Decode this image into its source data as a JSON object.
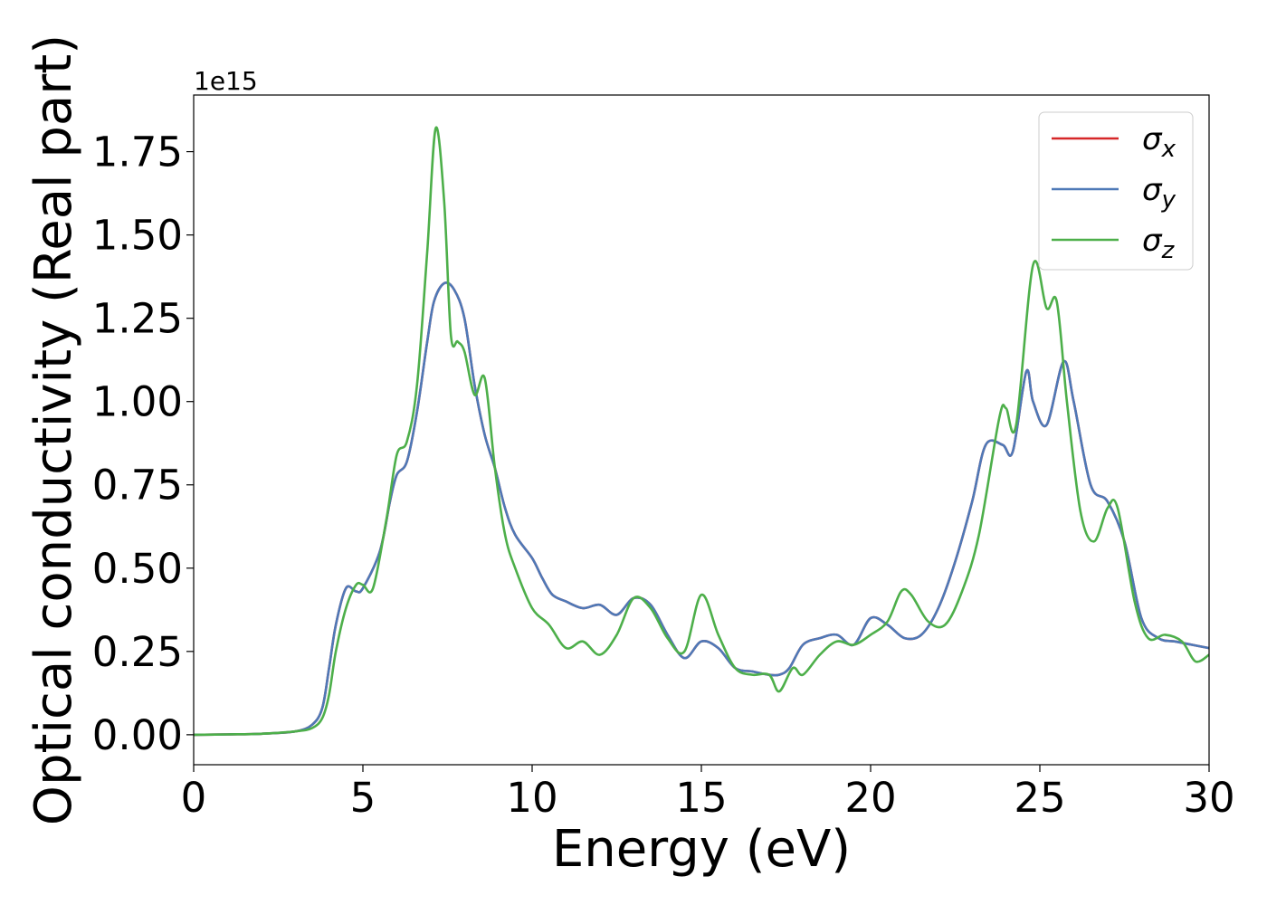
{
  "chart_data": {
    "type": "line",
    "xlabel": "Energy (eV)",
    "ylabel": "Optical conductivity (Real part)",
    "y_offset_text": "1e15",
    "xlim": [
      0,
      30
    ],
    "ylim": [
      -0.09,
      1.92
    ],
    "x_ticks": [
      0,
      5,
      10,
      15,
      20,
      25,
      30
    ],
    "x_tick_labels": [
      "0",
      "5",
      "10",
      "15",
      "20",
      "25",
      "30"
    ],
    "y_ticks": [
      0,
      0.25,
      0.5,
      0.75,
      1.0,
      1.25,
      1.5,
      1.75
    ],
    "y_tick_labels": [
      "0.00",
      "0.25",
      "0.50",
      "0.75",
      "1.00",
      "1.25",
      "1.50",
      "1.75"
    ],
    "grid": false,
    "legend_position": "upper-right",
    "series": [
      {
        "name": "σx",
        "symbol": "σ",
        "subscript": "x",
        "color": "#d62728",
        "x": [
          0,
          1,
          2,
          3,
          3.5,
          3.8,
          4.0,
          4.2,
          4.5,
          4.8,
          5.0,
          5.5,
          5.8,
          6.0,
          6.3,
          6.6,
          6.9,
          7.1,
          7.4,
          7.7,
          8.0,
          8.3,
          8.6,
          8.9,
          9.2,
          9.5,
          10.0,
          10.3,
          10.6,
          11.0,
          11.5,
          12.0,
          12.5,
          13.0,
          13.5,
          14.0,
          14.5,
          15.0,
          15.5,
          16.0,
          16.5,
          17.0,
          17.3,
          17.6,
          18.0,
          18.5,
          19.0,
          19.5,
          20.0,
          20.5,
          21.0,
          21.5,
          22.0,
          22.5,
          23.0,
          23.4,
          23.9,
          24.2,
          24.6,
          24.8,
          25.2,
          25.7,
          26.0,
          26.5,
          27.0,
          27.5,
          28.0,
          28.5,
          29.0,
          29.5,
          30.0
        ],
        "y": [
          0,
          0.001,
          0.003,
          0.01,
          0.03,
          0.08,
          0.2,
          0.33,
          0.44,
          0.43,
          0.44,
          0.55,
          0.7,
          0.78,
          0.82,
          0.97,
          1.18,
          1.3,
          1.355,
          1.335,
          1.25,
          1.05,
          0.9,
          0.8,
          0.68,
          0.6,
          0.53,
          0.47,
          0.42,
          0.4,
          0.38,
          0.39,
          0.36,
          0.41,
          0.39,
          0.3,
          0.23,
          0.28,
          0.26,
          0.2,
          0.19,
          0.18,
          0.18,
          0.2,
          0.27,
          0.29,
          0.3,
          0.27,
          0.35,
          0.33,
          0.29,
          0.3,
          0.38,
          0.52,
          0.7,
          0.87,
          0.87,
          0.85,
          1.09,
          1.0,
          0.93,
          1.12,
          1.0,
          0.75,
          0.7,
          0.58,
          0.35,
          0.29,
          0.28,
          0.27,
          0.26
        ]
      },
      {
        "name": "σy",
        "symbol": "σ",
        "subscript": "y",
        "color": "#4e79b7",
        "x": [
          0,
          1,
          2,
          3,
          3.5,
          3.8,
          4.0,
          4.2,
          4.5,
          4.8,
          5.0,
          5.5,
          5.8,
          6.0,
          6.3,
          6.6,
          6.9,
          7.1,
          7.4,
          7.7,
          8.0,
          8.3,
          8.6,
          8.9,
          9.2,
          9.5,
          10.0,
          10.3,
          10.6,
          11.0,
          11.5,
          12.0,
          12.5,
          13.0,
          13.5,
          14.0,
          14.5,
          15.0,
          15.5,
          16.0,
          16.5,
          17.0,
          17.3,
          17.6,
          18.0,
          18.5,
          19.0,
          19.5,
          20.0,
          20.5,
          21.0,
          21.5,
          22.0,
          22.5,
          23.0,
          23.4,
          23.9,
          24.2,
          24.6,
          24.8,
          25.2,
          25.7,
          26.0,
          26.5,
          27.0,
          27.5,
          28.0,
          28.5,
          29.0,
          29.5,
          30.0
        ],
        "y": [
          0,
          0.001,
          0.003,
          0.01,
          0.03,
          0.08,
          0.2,
          0.33,
          0.44,
          0.43,
          0.44,
          0.55,
          0.7,
          0.78,
          0.82,
          0.97,
          1.18,
          1.3,
          1.355,
          1.335,
          1.25,
          1.05,
          0.9,
          0.8,
          0.68,
          0.6,
          0.53,
          0.47,
          0.42,
          0.4,
          0.38,
          0.39,
          0.36,
          0.41,
          0.39,
          0.3,
          0.23,
          0.28,
          0.26,
          0.2,
          0.19,
          0.18,
          0.18,
          0.2,
          0.27,
          0.29,
          0.3,
          0.27,
          0.35,
          0.33,
          0.29,
          0.3,
          0.38,
          0.52,
          0.7,
          0.87,
          0.87,
          0.85,
          1.09,
          1.0,
          0.93,
          1.12,
          1.0,
          0.75,
          0.7,
          0.58,
          0.35,
          0.29,
          0.28,
          0.27,
          0.26
        ]
      },
      {
        "name": "σz",
        "symbol": "σ",
        "subscript": "z",
        "color": "#4daf4a",
        "x": [
          0,
          1,
          2,
          3,
          3.5,
          3.8,
          4.0,
          4.2,
          4.5,
          4.8,
          5.0,
          5.3,
          5.7,
          6.0,
          6.3,
          6.6,
          6.9,
          7.15,
          7.4,
          7.6,
          7.8,
          8.0,
          8.3,
          8.6,
          8.9,
          9.2,
          9.5,
          10.0,
          10.5,
          11.0,
          11.5,
          12.0,
          12.5,
          13.0,
          13.5,
          14.0,
          14.5,
          15.0,
          15.5,
          16.0,
          16.5,
          17.0,
          17.3,
          17.7,
          18.0,
          18.5,
          19.0,
          19.5,
          20.0,
          20.5,
          20.9,
          21.2,
          21.7,
          22.2,
          22.7,
          23.2,
          23.8,
          24.0,
          24.3,
          24.8,
          25.2,
          25.5,
          25.8,
          26.2,
          26.6,
          27.0,
          27.3,
          27.8,
          28.2,
          28.7,
          29.2,
          29.6,
          30.0
        ],
        "y": [
          0,
          0.001,
          0.003,
          0.01,
          0.02,
          0.05,
          0.12,
          0.25,
          0.38,
          0.45,
          0.45,
          0.44,
          0.65,
          0.84,
          0.88,
          1.05,
          1.45,
          1.82,
          1.6,
          1.2,
          1.18,
          1.15,
          1.02,
          1.07,
          0.8,
          0.6,
          0.5,
          0.38,
          0.33,
          0.26,
          0.28,
          0.24,
          0.3,
          0.41,
          0.38,
          0.29,
          0.25,
          0.42,
          0.3,
          0.2,
          0.18,
          0.18,
          0.13,
          0.2,
          0.18,
          0.24,
          0.28,
          0.27,
          0.3,
          0.34,
          0.43,
          0.42,
          0.34,
          0.33,
          0.43,
          0.6,
          0.95,
          0.98,
          0.93,
          1.41,
          1.28,
          1.3,
          1.0,
          0.67,
          0.58,
          0.68,
          0.68,
          0.4,
          0.29,
          0.3,
          0.28,
          0.22,
          0.24
        ]
      }
    ]
  }
}
